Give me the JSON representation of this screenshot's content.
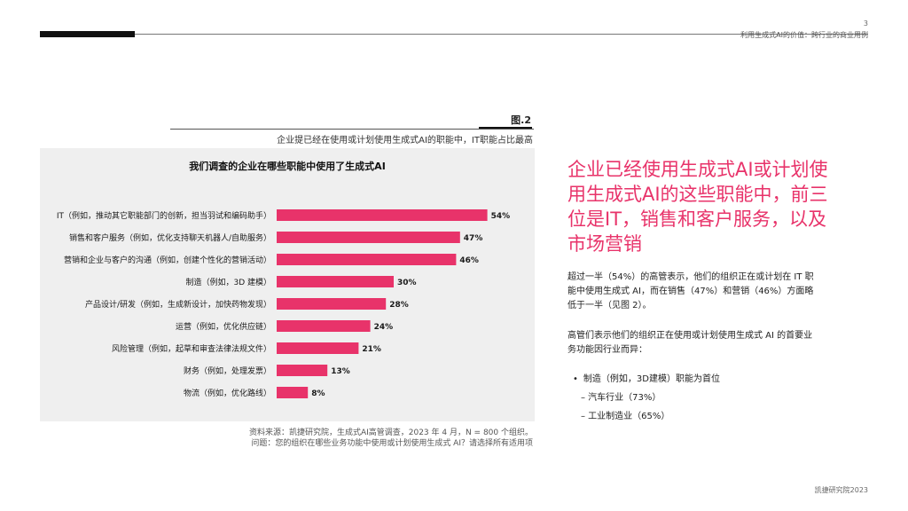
{
  "header": {
    "page_number": "3",
    "subtitle": "利用生成式AI的价值：跨行业的商业用例"
  },
  "figure": {
    "label": "图.2",
    "caption": "企业提已经在使用或计划使用生成式AI的职能中，IT职能占比最高"
  },
  "chart_data": {
    "type": "bar",
    "orientation": "horizontal",
    "title": "我们调查的企业在哪些职能中使用了生成式AI",
    "categories": [
      "IT（例如，推动其它职能部门的创新，担当羽试和编码助手）",
      "销售和客户服务（例如，优化支持聊天机器人/自助服务）",
      "营销和企业与客户的沟通（例如，创建个性化的营销活动）",
      "制造（例如，3D 建模）",
      "产品设计/研发（例如，生成新设计，加快药物发现）",
      "运营（例如，优化供应链）",
      "风险管理（例如，起草和审查法律法规文件）",
      "财务（例如，处理发票）",
      "物流（例如，优化路线）"
    ],
    "values": [
      54,
      47,
      46,
      30,
      28,
      24,
      21,
      13,
      8
    ],
    "value_labels": [
      "54%",
      "47%",
      "46%",
      "30%",
      "28%",
      "24%",
      "21%",
      "13%",
      "8%"
    ],
    "unit": "%",
    "bar_color": "#e8336a",
    "grid": false,
    "legend": "none"
  },
  "source": {
    "line1": "资料来源：凯捷研究院，生成式AI高管调查，2023 年 4 月，N = 800 个组织。",
    "line2": "问题：您的组织在哪些业务功能中使用或计划使用生成式 AI？请选择所有适用项"
  },
  "body": {
    "headline": "企业已经使用生成式AI或计划使用生成式AI的这些职能中，前三位是IT，销售和客户服务，以及市场营销",
    "para1": "超过一半（54%）的高管表示，他们的组织正在或计划在 IT 职能中使用生成式 AI，而在销售（47%）和营销（46%）方面略低于一半（见图 2）。",
    "para2": "高管们表示他们的组织正在使用或计划使用生成式 AI 的首要业务功能因行业而异：",
    "bullet": "制造（例如，3D建模）职能为首位",
    "sub1": "– 汽车行业（73%）",
    "sub2": "– 工业制造业（65%）"
  },
  "footer": {
    "brand": "凯捷研究院2023"
  },
  "colors": {
    "accent": "#e8336a",
    "panel": "#efefef"
  }
}
